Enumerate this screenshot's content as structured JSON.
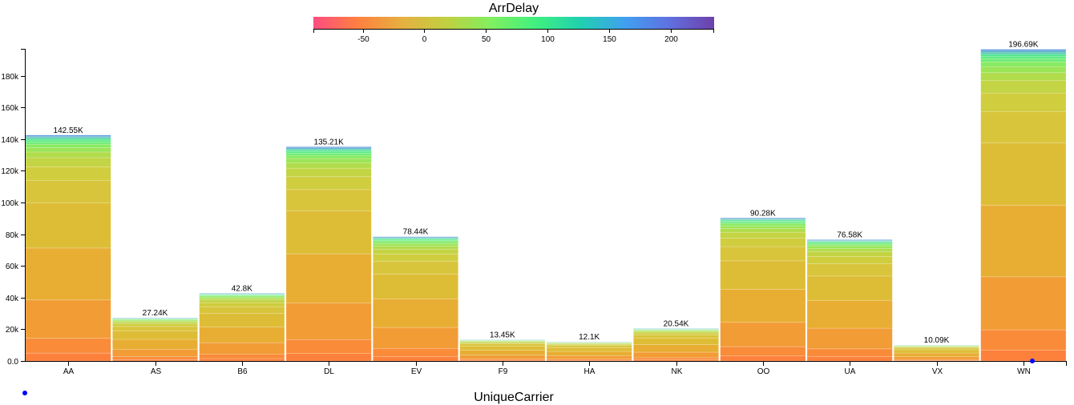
{
  "chart_data": {
    "type": "bar",
    "stacked_by": "ArrDelay",
    "title": "",
    "xlabel": "UniqueCarrier",
    "ylabel": "",
    "ylim": [
      0,
      197000
    ],
    "yticks": [
      0,
      20000,
      40000,
      60000,
      80000,
      100000,
      120000,
      140000,
      160000,
      180000
    ],
    "ytick_labels": [
      "0.0",
      "20k",
      "40k",
      "60k",
      "80k",
      "100k",
      "120k",
      "140k",
      "160k",
      "180k"
    ],
    "categories": [
      "AA",
      "AS",
      "B6",
      "DL",
      "EV",
      "F9",
      "HA",
      "NK",
      "OO",
      "UA",
      "VX",
      "WN"
    ],
    "values": [
      142550,
      27240,
      42800,
      135210,
      78440,
      13450,
      12100,
      20540,
      90280,
      76580,
      10090,
      196690
    ],
    "value_labels": [
      "142.55K",
      "27.24K",
      "42.8K",
      "135.21K",
      "78.44K",
      "13.45K",
      "12.1K",
      "20.54K",
      "90.28K",
      "76.58K",
      "10.09K",
      "196.69K"
    ],
    "color_legend": {
      "title": "ArrDelay",
      "domain": [
        -90,
        235
      ],
      "ticks": [
        -50,
        0,
        50,
        100,
        150,
        200
      ],
      "tick_labels": [
        "-50",
        "0",
        "50",
        "100",
        "150",
        "200"
      ],
      "colors": [
        "#ff4c80",
        "#ff8040",
        "#e6b040",
        "#c0d040",
        "#80f060",
        "#40f080",
        "#20d0b0",
        "#40a0f0",
        "#6070e0",
        "#6e40aa"
      ]
    }
  }
}
